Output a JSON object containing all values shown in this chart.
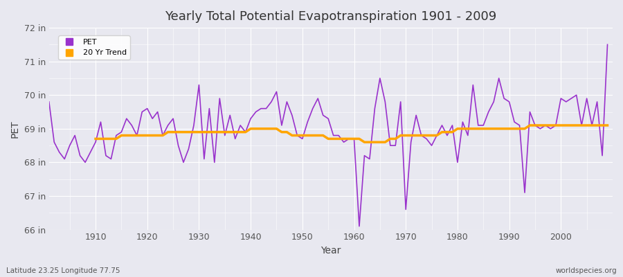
{
  "title": "Yearly Total Potential Evapotranspiration 1901 - 2009",
  "xlabel": "Year",
  "ylabel": "PET",
  "bottom_left_label": "Latitude 23.25 Longitude 77.75",
  "bottom_right_label": "worldspecies.org",
  "pet_color": "#9932CC",
  "trend_color": "#FFA500",
  "background_color": "#E8E8F0",
  "grid_color": "#FFFFFF",
  "years": [
    1901,
    1902,
    1903,
    1904,
    1905,
    1906,
    1907,
    1908,
    1909,
    1910,
    1911,
    1912,
    1913,
    1914,
    1915,
    1916,
    1917,
    1918,
    1919,
    1920,
    1921,
    1922,
    1923,
    1924,
    1925,
    1926,
    1927,
    1928,
    1929,
    1930,
    1931,
    1932,
    1933,
    1934,
    1935,
    1936,
    1937,
    1938,
    1939,
    1940,
    1941,
    1942,
    1943,
    1944,
    1945,
    1946,
    1947,
    1948,
    1949,
    1950,
    1951,
    1952,
    1953,
    1954,
    1955,
    1956,
    1957,
    1958,
    1959,
    1960,
    1961,
    1962,
    1963,
    1964,
    1965,
    1966,
    1967,
    1968,
    1969,
    1970,
    1971,
    1972,
    1973,
    1974,
    1975,
    1976,
    1977,
    1978,
    1979,
    1980,
    1981,
    1982,
    1983,
    1984,
    1985,
    1986,
    1987,
    1988,
    1989,
    1990,
    1991,
    1992,
    1993,
    1994,
    1995,
    1996,
    1997,
    1998,
    1999,
    2000,
    2001,
    2002,
    2003,
    2004,
    2005,
    2006,
    2007,
    2008,
    2009
  ],
  "pet_values": [
    69.8,
    68.6,
    68.3,
    68.1,
    68.5,
    68.8,
    68.2,
    68.0,
    68.3,
    68.6,
    69.2,
    68.2,
    68.1,
    68.8,
    68.9,
    69.3,
    69.1,
    68.8,
    69.5,
    69.6,
    69.3,
    69.5,
    68.8,
    69.1,
    69.3,
    68.5,
    68.0,
    68.4,
    69.1,
    70.3,
    68.1,
    69.6,
    68.0,
    69.9,
    68.8,
    69.4,
    68.7,
    69.1,
    68.9,
    69.3,
    69.5,
    69.6,
    69.6,
    69.8,
    70.1,
    69.1,
    69.8,
    69.4,
    68.8,
    68.7,
    69.2,
    69.6,
    69.9,
    69.4,
    69.3,
    68.8,
    68.8,
    68.6,
    68.7,
    68.7,
    66.1,
    68.2,
    68.1,
    69.6,
    70.5,
    69.8,
    68.5,
    68.5,
    69.8,
    66.6,
    68.6,
    69.4,
    68.8,
    68.7,
    68.5,
    68.8,
    69.1,
    68.8,
    69.1,
    68.0,
    69.2,
    68.8,
    70.3,
    69.1,
    69.1,
    69.5,
    69.8,
    70.5,
    69.9,
    69.8,
    69.2,
    69.1,
    67.1,
    69.5,
    69.1,
    69.0,
    69.1,
    69.0,
    69.1,
    69.9,
    69.8,
    69.9,
    70.0,
    69.1,
    69.9,
    69.1,
    69.8,
    68.2,
    71.5
  ],
  "trend_years": [
    1910,
    1911,
    1912,
    1913,
    1914,
    1915,
    1916,
    1917,
    1918,
    1919,
    1920,
    1921,
    1922,
    1923,
    1924,
    1925,
    1926,
    1927,
    1928,
    1929,
    1930,
    1931,
    1932,
    1933,
    1934,
    1935,
    1936,
    1937,
    1938,
    1939,
    1940,
    1941,
    1942,
    1943,
    1944,
    1945,
    1946,
    1947,
    1948,
    1949,
    1950,
    1951,
    1952,
    1953,
    1954,
    1955,
    1956,
    1957,
    1958,
    1959,
    1960,
    1961,
    1962,
    1963,
    1964,
    1965,
    1966,
    1967,
    1968,
    1969,
    1970,
    1971,
    1972,
    1973,
    1974,
    1975,
    1976,
    1977,
    1978,
    1979,
    1980,
    1981,
    1982,
    1983,
    1984,
    1985,
    1986,
    1987,
    1988,
    1989,
    1990,
    1991,
    1992,
    1993,
    1994,
    1995,
    1996,
    1997,
    1998,
    1999,
    2000,
    2001,
    2002,
    2003,
    2004,
    2005,
    2006,
    2007,
    2008,
    2009
  ],
  "trend_values": [
    68.7,
    68.7,
    68.7,
    68.7,
    68.7,
    68.8,
    68.8,
    68.8,
    68.8,
    68.8,
    68.8,
    68.8,
    68.8,
    68.8,
    68.9,
    68.9,
    68.9,
    68.9,
    68.9,
    68.9,
    68.9,
    68.9,
    68.9,
    68.9,
    68.9,
    68.9,
    68.9,
    68.9,
    68.9,
    68.9,
    69.0,
    69.0,
    69.0,
    69.0,
    69.0,
    69.0,
    68.9,
    68.9,
    68.8,
    68.8,
    68.8,
    68.8,
    68.8,
    68.8,
    68.8,
    68.7,
    68.7,
    68.7,
    68.7,
    68.7,
    68.7,
    68.7,
    68.6,
    68.6,
    68.6,
    68.6,
    68.6,
    68.7,
    68.7,
    68.8,
    68.8,
    68.8,
    68.8,
    68.8,
    68.8,
    68.8,
    68.8,
    68.9,
    68.9,
    68.9,
    69.0,
    69.0,
    69.0,
    69.0,
    69.0,
    69.0,
    69.0,
    69.0,
    69.0,
    69.0,
    69.0,
    69.0,
    69.0,
    69.0,
    69.1,
    69.1,
    69.1,
    69.1,
    69.1,
    69.1,
    69.1,
    69.1,
    69.1,
    69.1,
    69.1,
    69.1,
    69.1,
    69.1,
    69.1,
    69.1
  ],
  "ylim": [
    66.0,
    72.0
  ],
  "yticks": [
    66,
    67,
    68,
    69,
    70,
    71,
    72
  ],
  "ytick_labels": [
    "66 in",
    "67 in",
    "68 in",
    "69 in",
    "70 in",
    "71 in",
    "72 in"
  ],
  "xlim": [
    1901,
    2010
  ],
  "xticks": [
    1910,
    1920,
    1930,
    1940,
    1950,
    1960,
    1970,
    1980,
    1990,
    2000
  ]
}
